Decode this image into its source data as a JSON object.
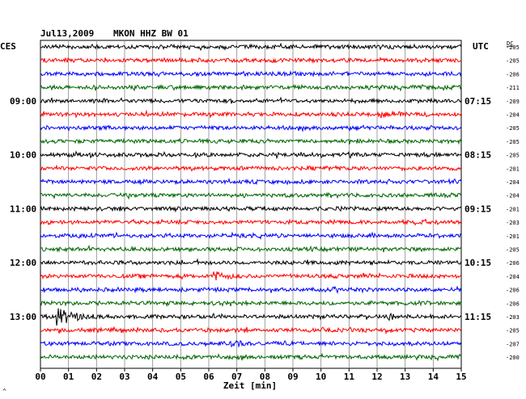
{
  "header": {
    "date": "Jul13,2009",
    "station": "MKON HHZ BW 01",
    "left_tz": "CES",
    "right_tz": "UTC",
    "dc_label": "DC"
  },
  "left_times": [
    "09:00",
    "10:00",
    "11:00",
    "12:00",
    "13:00"
  ],
  "right_times": [
    "07:15",
    "08:15",
    "09:15",
    "10:15",
    "11:15"
  ],
  "dc_offsets": [
    "-205",
    "-205",
    "-206",
    "-211",
    "-209",
    "-204",
    "-205",
    "-205",
    "-205",
    "-201",
    "-204",
    "-204",
    "-201",
    "-203",
    "-201",
    "-205",
    "-206",
    "-204",
    "-206",
    "-206",
    "-203",
    "-205",
    "-207",
    "-200"
  ],
  "x_ticks": [
    "00",
    "01",
    "02",
    "03",
    "04",
    "05",
    "06",
    "07",
    "08",
    "09",
    "10",
    "11",
    "12",
    "13",
    "14",
    "15"
  ],
  "xlabel": "Zeit [min]",
  "corner_mark": "^",
  "trace_colors": [
    "#000000",
    "#ff0000",
    "#0000ff",
    "#006600"
  ],
  "events": [
    {
      "trace": 20,
      "minute": 0.6,
      "amp": 10,
      "decay": 0.5
    },
    {
      "trace": 20,
      "minute": 12.4,
      "amp": 4,
      "decay": 0.2
    },
    {
      "trace": 17,
      "minute": 6.2,
      "amp": 5,
      "decay": 0.3
    },
    {
      "trace": 22,
      "minute": 6.8,
      "amp": 3,
      "decay": 0.3
    },
    {
      "trace": 5,
      "minute": 12.1,
      "amp": 3,
      "decay": 0.3
    }
  ]
}
